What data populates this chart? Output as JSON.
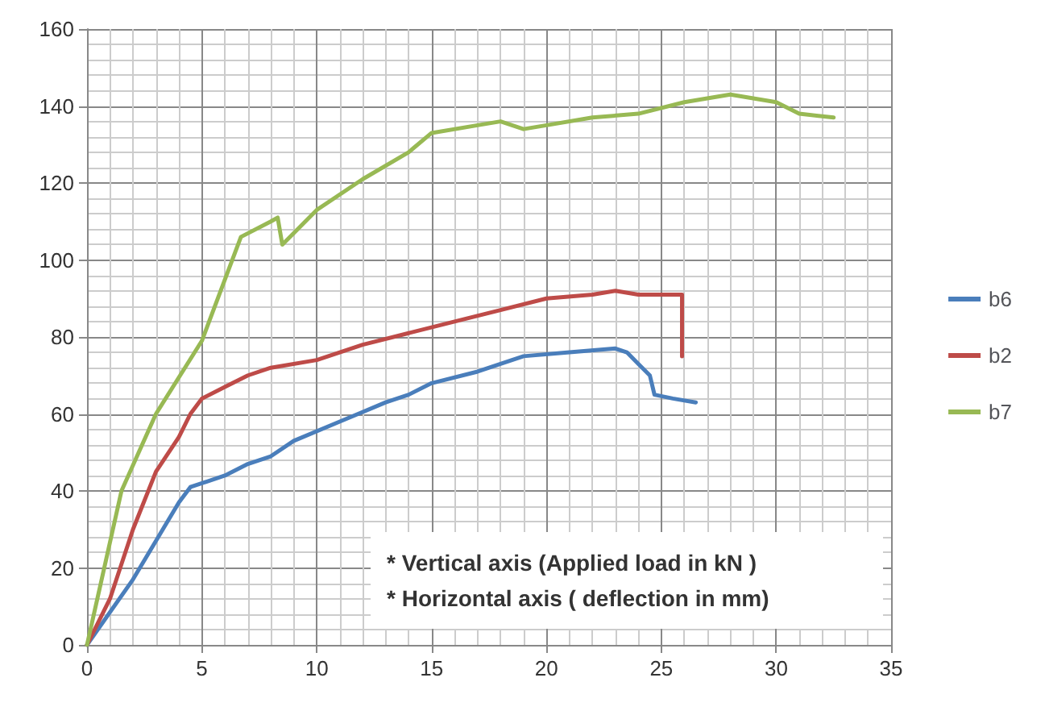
{
  "chart_data": {
    "type": "line",
    "xlim": [
      0,
      35
    ],
    "xticks": [
      0,
      5,
      10,
      15,
      20,
      25,
      30,
      35
    ],
    "ylim": [
      0,
      160
    ],
    "yticks": [
      0,
      20,
      40,
      60,
      80,
      100,
      120,
      140,
      160
    ],
    "grid": true,
    "legend": "right",
    "marker": "none",
    "line_style": "solid",
    "annotations": [
      "* Vertical axis (Applied load in kN )",
      "* Horizontal axis ( deflection in mm)"
    ],
    "series": [
      {
        "name": "b6",
        "color": "#4a7ebb",
        "x": [
          0,
          2,
          3,
          4,
          4.5,
          6,
          7,
          8,
          9,
          11,
          13,
          14,
          15,
          17,
          19,
          21,
          23,
          23.5,
          24,
          24.5,
          24.7,
          25.5,
          26.5
        ],
        "values": [
          0,
          17,
          27,
          37,
          41,
          44,
          47,
          49,
          53,
          58,
          63,
          65,
          68,
          71,
          75,
          76,
          77,
          76,
          73,
          70,
          65,
          64,
          63
        ]
      },
      {
        "name": "b2",
        "color": "#be4b48",
        "x": [
          0,
          1,
          2,
          3,
          4,
          4.5,
          5,
          6,
          7,
          8,
          10,
          12,
          14,
          16,
          18,
          20,
          22,
          23,
          24,
          25.9,
          25.9
        ],
        "values": [
          0,
          12,
          30,
          45,
          54,
          60,
          64,
          67,
          70,
          72,
          74,
          78,
          81,
          84,
          87,
          90,
          91,
          92,
          91,
          91,
          75
        ]
      },
      {
        "name": "b7",
        "color": "#98b954",
        "x": [
          0,
          1.5,
          3,
          5,
          6.7,
          8,
          8.3,
          8.5,
          10,
          12,
          14,
          15,
          17,
          18,
          19,
          20,
          22,
          24,
          26,
          28,
          30,
          31,
          32.5
        ],
        "values": [
          0,
          40,
          60,
          79,
          106,
          110,
          111,
          104,
          113,
          121,
          128,
          133,
          135,
          136,
          134,
          135,
          137,
          138,
          141,
          143,
          141,
          138,
          137
        ]
      }
    ]
  }
}
